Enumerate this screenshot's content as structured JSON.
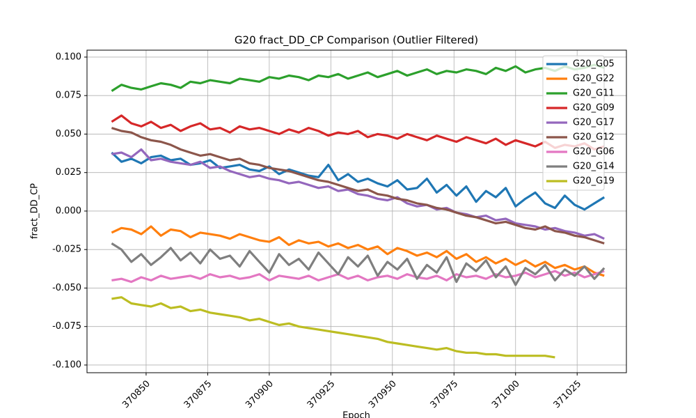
{
  "chart_data": {
    "type": "line",
    "title": "G20 fract_DD_CP Comparison (Outlier Filtered)",
    "x_label": "Epoch",
    "y_label": "fract_DD_CP",
    "x": [
      370836,
      370840,
      370844,
      370848,
      370852,
      370856,
      370860,
      370864,
      370868,
      370872,
      370876,
      370880,
      370884,
      370888,
      370892,
      370896,
      370900,
      370904,
      370908,
      370912,
      370916,
      370920,
      370924,
      370928,
      370932,
      370936,
      370940,
      370944,
      370948,
      370952,
      370956,
      370960,
      370964,
      370968,
      370972,
      370976,
      370980,
      370984,
      370988,
      370992,
      370996,
      371000,
      371004,
      371008,
      371012,
      371016,
      371020,
      371024,
      371028,
      371032,
      371036
    ],
    "series": [
      {
        "name": "G20_G05",
        "color": "#1f77b4",
        "values": [
          0.038,
          0.032,
          0.034,
          0.031,
          0.035,
          0.036,
          0.033,
          0.034,
          0.03,
          0.031,
          0.033,
          0.028,
          0.029,
          0.03,
          0.027,
          0.026,
          0.029,
          0.024,
          0.027,
          0.025,
          0.023,
          0.022,
          0.03,
          0.02,
          0.024,
          0.019,
          0.021,
          0.018,
          0.016,
          0.02,
          0.014,
          0.015,
          0.021,
          0.012,
          0.017,
          0.01,
          0.016,
          0.006,
          0.013,
          0.009,
          0.015,
          0.003,
          0.008,
          0.012,
          0.005,
          0.002,
          0.01,
          0.004,
          0.001,
          0.005,
          0.009
        ]
      },
      {
        "name": "G20_G22",
        "color": "#ff7f0e",
        "values": [
          -0.014,
          -0.011,
          -0.012,
          -0.015,
          -0.01,
          -0.016,
          -0.012,
          -0.013,
          -0.017,
          -0.014,
          -0.015,
          -0.016,
          -0.018,
          -0.015,
          -0.017,
          -0.019,
          -0.02,
          -0.017,
          -0.022,
          -0.019,
          -0.021,
          -0.02,
          -0.023,
          -0.021,
          -0.024,
          -0.022,
          -0.025,
          -0.023,
          -0.028,
          -0.024,
          -0.026,
          -0.029,
          -0.027,
          -0.03,
          -0.026,
          -0.031,
          -0.028,
          -0.033,
          -0.03,
          -0.034,
          -0.031,
          -0.035,
          -0.032,
          -0.036,
          -0.033,
          -0.037,
          -0.035,
          -0.038,
          -0.036,
          -0.04,
          -0.042
        ]
      },
      {
        "name": "G20_G11",
        "color": "#2ca02c",
        "values": [
          0.078,
          0.082,
          0.08,
          0.079,
          0.081,
          0.083,
          0.082,
          0.08,
          0.084,
          0.083,
          0.085,
          0.084,
          0.083,
          0.086,
          0.085,
          0.084,
          0.087,
          0.086,
          0.088,
          0.087,
          0.085,
          0.088,
          0.087,
          0.089,
          0.086,
          0.088,
          0.09,
          0.087,
          0.089,
          0.091,
          0.088,
          0.09,
          0.092,
          0.089,
          0.091,
          0.09,
          0.092,
          0.091,
          0.089,
          0.093,
          0.091,
          0.094,
          0.09,
          0.092,
          0.093,
          0.091,
          0.094,
          0.092,
          0.093,
          0.095,
          0.093
        ]
      },
      {
        "name": "G20_G09",
        "color": "#d62728",
        "values": [
          0.058,
          0.062,
          0.057,
          0.055,
          0.058,
          0.054,
          0.056,
          0.052,
          0.055,
          0.057,
          0.053,
          0.054,
          0.051,
          0.055,
          0.053,
          0.054,
          0.052,
          0.05,
          0.053,
          0.051,
          0.054,
          0.052,
          0.049,
          0.051,
          0.05,
          0.052,
          0.048,
          0.05,
          0.049,
          0.047,
          0.05,
          0.048,
          0.046,
          0.049,
          0.047,
          0.045,
          0.048,
          0.046,
          0.044,
          0.047,
          0.043,
          0.046,
          0.044,
          0.042,
          0.045,
          0.041,
          0.043,
          0.042,
          0.044,
          0.04,
          0.042
        ]
      },
      {
        "name": "G20_G17",
        "color": "#9467bd",
        "values": [
          0.037,
          0.038,
          0.035,
          0.04,
          0.033,
          0.034,
          0.032,
          0.031,
          0.03,
          0.032,
          0.028,
          0.029,
          0.026,
          0.024,
          0.022,
          0.023,
          0.021,
          0.02,
          0.018,
          0.019,
          0.017,
          0.015,
          0.016,
          0.013,
          0.014,
          0.011,
          0.01,
          0.008,
          0.007,
          0.009,
          0.005,
          0.003,
          0.004,
          0.001,
          0.002,
          -0.001,
          -0.002,
          -0.004,
          -0.003,
          -0.006,
          -0.005,
          -0.008,
          -0.009,
          -0.01,
          -0.012,
          -0.011,
          -0.013,
          -0.014,
          -0.016,
          -0.015,
          -0.018
        ]
      },
      {
        "name": "G20_G12",
        "color": "#8c564b",
        "values": [
          0.054,
          0.052,
          0.051,
          0.048,
          0.046,
          0.045,
          0.043,
          0.04,
          0.038,
          0.036,
          0.037,
          0.035,
          0.033,
          0.034,
          0.031,
          0.03,
          0.028,
          0.027,
          0.026,
          0.024,
          0.022,
          0.02,
          0.019,
          0.017,
          0.015,
          0.013,
          0.014,
          0.011,
          0.01,
          0.008,
          0.007,
          0.005,
          0.004,
          0.002,
          0.001,
          -0.001,
          -0.003,
          -0.004,
          -0.006,
          -0.008,
          -0.007,
          -0.009,
          -0.011,
          -0.012,
          -0.01,
          -0.013,
          -0.014,
          -0.016,
          -0.017,
          -0.019,
          -0.021
        ]
      },
      {
        "name": "G20_G06",
        "color": "#e377c2",
        "values": [
          -0.045,
          -0.044,
          -0.046,
          -0.043,
          -0.045,
          -0.042,
          -0.044,
          -0.043,
          -0.042,
          -0.044,
          -0.041,
          -0.043,
          -0.042,
          -0.044,
          -0.043,
          -0.041,
          -0.045,
          -0.042,
          -0.043,
          -0.044,
          -0.042,
          -0.045,
          -0.043,
          -0.041,
          -0.044,
          -0.042,
          -0.045,
          -0.043,
          -0.042,
          -0.044,
          -0.041,
          -0.043,
          -0.044,
          -0.042,
          -0.045,
          -0.041,
          -0.043,
          -0.042,
          -0.044,
          -0.041,
          -0.043,
          -0.042,
          -0.04,
          -0.043,
          -0.041,
          -0.039,
          -0.042,
          -0.04,
          -0.043,
          -0.041,
          -0.039
        ]
      },
      {
        "name": "G20_G14",
        "color": "#7f7f7f",
        "values": [
          -0.021,
          -0.025,
          -0.033,
          -0.028,
          -0.035,
          -0.03,
          -0.024,
          -0.032,
          -0.027,
          -0.034,
          -0.025,
          -0.031,
          -0.029,
          -0.036,
          -0.026,
          -0.033,
          -0.04,
          -0.028,
          -0.035,
          -0.031,
          -0.038,
          -0.027,
          -0.034,
          -0.041,
          -0.03,
          -0.036,
          -0.029,
          -0.042,
          -0.033,
          -0.038,
          -0.031,
          -0.044,
          -0.035,
          -0.04,
          -0.03,
          -0.046,
          -0.034,
          -0.039,
          -0.032,
          -0.043,
          -0.036,
          -0.048,
          -0.037,
          -0.041,
          -0.035,
          -0.045,
          -0.038,
          -0.042,
          -0.036,
          -0.044,
          -0.037
        ]
      },
      {
        "name": "G20_G19",
        "color": "#bcbd22",
        "values": [
          -0.057,
          -0.056,
          -0.06,
          -0.061,
          -0.062,
          -0.06,
          -0.063,
          -0.062,
          -0.065,
          -0.064,
          -0.066,
          -0.067,
          -0.068,
          -0.069,
          -0.071,
          -0.07,
          -0.072,
          -0.074,
          -0.073,
          -0.075,
          -0.076,
          -0.077,
          -0.078,
          -0.079,
          -0.08,
          -0.081,
          -0.082,
          -0.083,
          -0.085,
          -0.086,
          -0.087,
          -0.088,
          -0.089,
          -0.09,
          -0.089,
          -0.091,
          -0.092,
          -0.092,
          -0.093,
          -0.093,
          -0.094,
          -0.094,
          -0.094,
          -0.094,
          -0.094,
          -0.095,
          null,
          null,
          null,
          null,
          null
        ]
      }
    ],
    "xlim": [
      370826,
      371045
    ],
    "ylim": [
      -0.105,
      0.1045
    ],
    "xticks": [
      370850,
      370875,
      370900,
      370925,
      370950,
      370975,
      371000,
      371025
    ],
    "yticks": [
      {
        "value": 0.1,
        "label": "0.100"
      },
      0.075,
      {
        "value": 0.05,
        "label": "0.050"
      },
      0.025,
      {
        "value": 0,
        "label": "0.000"
      },
      -0.025,
      {
        "value": -0.05,
        "label": "-0.050"
      },
      -0.075,
      {
        "value": -0.1,
        "label": "-0.100"
      }
    ],
    "grid": true,
    "legend": "upper right"
  }
}
